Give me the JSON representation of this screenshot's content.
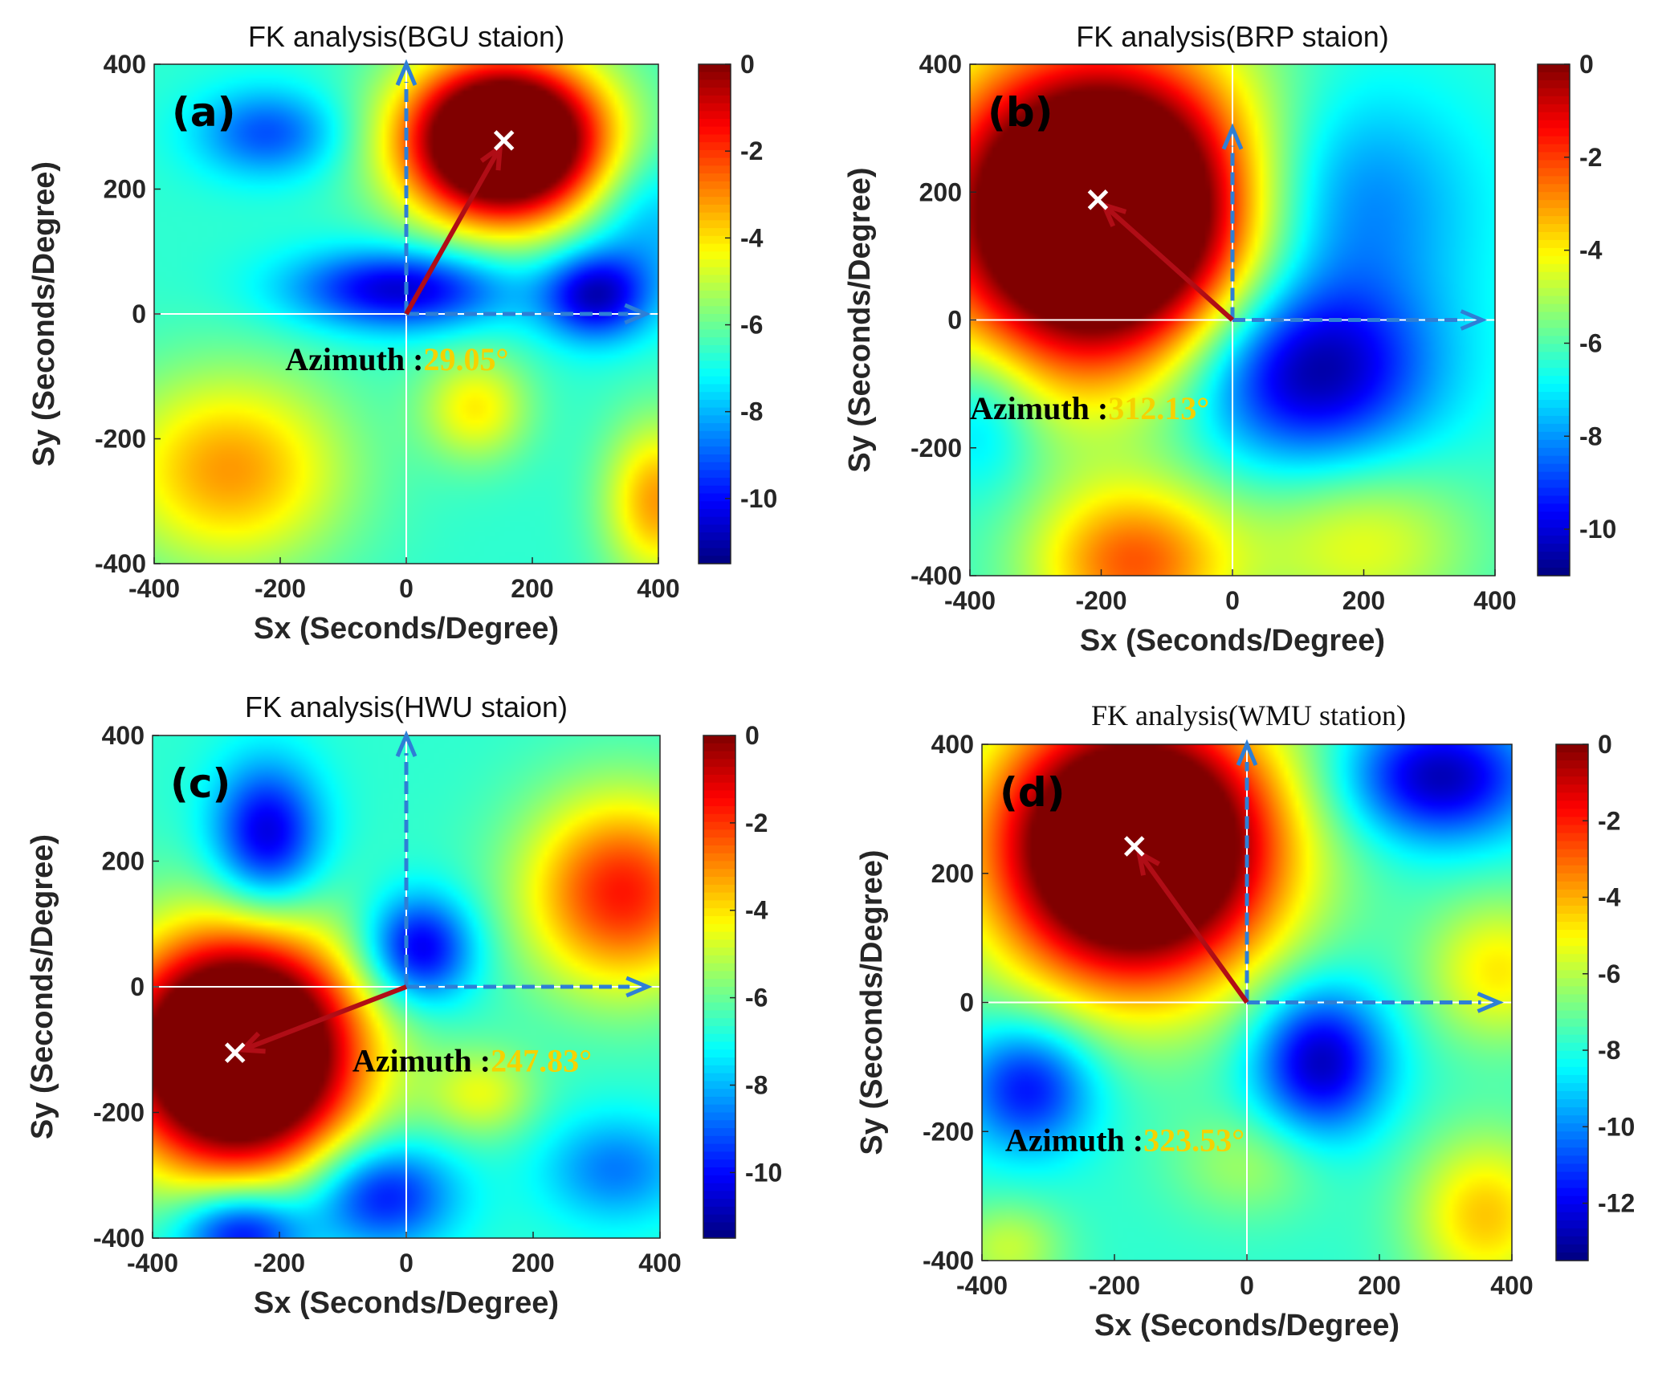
{
  "figure": {
    "colors": {
      "arrow_dashed": "#2e7fd6",
      "arrow_azimuth": "#b00d16",
      "azimuth_label": "#000000",
      "azimuth_value": "#f5d200",
      "marker": "#ffffff",
      "axis_lines": "#ffffff"
    }
  },
  "chart_data": [
    {
      "type": "heatmap",
      "panel_label": "(a)",
      "title": "FK analysis(BGU staion)",
      "xlabel": "Sx (Seconds/Degree)",
      "ylabel": "Sy (Seconds/Degree)",
      "xlim": [
        -400,
        400
      ],
      "ylim": [
        -400,
        400
      ],
      "xticks": [
        -400,
        -200,
        0,
        200,
        400
      ],
      "yticks": [
        -400,
        -200,
        0,
        200,
        400
      ],
      "colorbar": {
        "min": -11.5,
        "max": 0,
        "ticks": [
          0,
          -2,
          -4,
          -6,
          -8,
          -10
        ]
      },
      "peak": {
        "x": 155,
        "y": 278
      },
      "azimuth_label": "Azimuth :",
      "azimuth_value": "29.05°",
      "blobs": [
        {
          "x": 155,
          "y": 278,
          "sx": 110,
          "sy": 90,
          "a": 11.5
        },
        {
          "x": -10,
          "y": 40,
          "sx": 120,
          "sy": 45,
          "a": -4.0
        },
        {
          "x": 300,
          "y": 30,
          "sx": 60,
          "sy": 50,
          "a": -4.0
        },
        {
          "x": -220,
          "y": 290,
          "sx": 80,
          "sy": 50,
          "a": -2.5
        },
        {
          "x": -280,
          "y": -250,
          "sx": 130,
          "sy": 110,
          "a": 3.5
        },
        {
          "x": 110,
          "y": -150,
          "sx": 60,
          "sy": 60,
          "a": 2.5
        },
        {
          "x": 400,
          "y": -300,
          "sx": 60,
          "sy": 90,
          "a": 3.5
        },
        {
          "x": 380,
          "y": 150,
          "sx": 70,
          "sy": 80,
          "a": -1.5
        }
      ]
    },
    {
      "type": "heatmap",
      "panel_label": "(b)",
      "title": "FK analysis(BRP staion)",
      "xlabel": "Sx (Seconds/Degree)",
      "ylabel": "Sy (Seconds/Degree)",
      "xlim": [
        -400,
        400
      ],
      "ylim": [
        -400,
        400
      ],
      "xticks": [
        -400,
        -200,
        0,
        200,
        400
      ],
      "yticks": [
        -400,
        -200,
        0,
        200,
        400
      ],
      "colorbar": {
        "min": -11,
        "max": 0,
        "ticks": [
          0,
          -2,
          -4,
          -6,
          -8,
          -10
        ]
      },
      "peak": {
        "x": -205,
        "y": 188
      },
      "azimuth_label": "Azimuth :",
      "azimuth_value": "312.13°",
      "blobs": [
        {
          "x": -200,
          "y": 170,
          "sx": 170,
          "sy": 170,
          "a": 12
        },
        {
          "x": 110,
          "y": -80,
          "sx": 130,
          "sy": 100,
          "a": -4.5
        },
        {
          "x": 150,
          "y": 180,
          "sx": 140,
          "sy": 130,
          "a": -2.5
        },
        {
          "x": -150,
          "y": -380,
          "sx": 110,
          "sy": 90,
          "a": 4
        },
        {
          "x": 200,
          "y": -350,
          "sx": 120,
          "sy": 90,
          "a": 2
        },
        {
          "x": -380,
          "y": -150,
          "sx": 60,
          "sy": 80,
          "a": -1.5
        }
      ]
    },
    {
      "type": "heatmap",
      "panel_label": "(c)",
      "title": "FK analysis(HWU staion)",
      "xlabel": "Sx (Seconds/Degree)",
      "ylabel": "Sy (Seconds/Degree)",
      "xlim": [
        -400,
        400
      ],
      "ylim": [
        -400,
        400
      ],
      "xticks": [
        -400,
        -200,
        0,
        200,
        400
      ],
      "yticks": [
        -400,
        -200,
        0,
        200,
        400
      ],
      "colorbar": {
        "min": -11.5,
        "max": 0,
        "ticks": [
          0,
          -2,
          -4,
          -6,
          -8,
          -10
        ]
      },
      "peak": {
        "x": -270,
        "y": -105
      },
      "azimuth_label": "Azimuth :",
      "azimuth_value": "247.83°",
      "blobs": [
        {
          "x": -265,
          "y": -105,
          "sx": 130,
          "sy": 130,
          "a": 12
        },
        {
          "x": 340,
          "y": 150,
          "sx": 110,
          "sy": 110,
          "a": 5
        },
        {
          "x": -220,
          "y": 240,
          "sx": 60,
          "sy": 80,
          "a": -4
        },
        {
          "x": 20,
          "y": 60,
          "sx": 60,
          "sy": 60,
          "a": -4
        },
        {
          "x": -40,
          "y": -330,
          "sx": 80,
          "sy": 60,
          "a": -3.5
        },
        {
          "x": -260,
          "y": -390,
          "sx": 70,
          "sy": 50,
          "a": -4
        },
        {
          "x": 330,
          "y": -290,
          "sx": 80,
          "sy": 60,
          "a": -2
        },
        {
          "x": 120,
          "y": -170,
          "sx": 60,
          "sy": 50,
          "a": 2
        }
      ]
    },
    {
      "type": "heatmap",
      "panel_label": "(d)",
      "title": "FK analysis(WMU station)",
      "xlabel": "Sx (Seconds/Degree)",
      "ylabel": "Sy (Seconds/Degree)",
      "xlim": [
        -400,
        400
      ],
      "ylim": [
        -400,
        400
      ],
      "xticks": [
        -400,
        -200,
        0,
        200,
        400
      ],
      "yticks": [
        -400,
        -200,
        0,
        200,
        400
      ],
      "colorbar": {
        "min": -13.5,
        "max": 0,
        "ticks": [
          0,
          -2,
          -4,
          -6,
          -8,
          -10,
          -12
        ]
      },
      "peak": {
        "x": -170,
        "y": 242
      },
      "azimuth_label": "Azimuth :",
      "azimuth_value": "323.53°",
      "blobs": [
        {
          "x": -170,
          "y": 242,
          "sx": 150,
          "sy": 150,
          "a": 13.5
        },
        {
          "x": 110,
          "y": -90,
          "sx": 70,
          "sy": 80,
          "a": -5
        },
        {
          "x": 290,
          "y": 350,
          "sx": 100,
          "sy": 70,
          "a": -5
        },
        {
          "x": -330,
          "y": -130,
          "sx": 70,
          "sy": 70,
          "a": -4
        },
        {
          "x": 380,
          "y": 50,
          "sx": 80,
          "sy": 80,
          "a": 3
        },
        {
          "x": 360,
          "y": -330,
          "sx": 80,
          "sy": 90,
          "a": 3.5
        },
        {
          "x": 0,
          "y": -250,
          "sx": 80,
          "sy": 60,
          "a": 1.5
        },
        {
          "x": -360,
          "y": -380,
          "sx": 60,
          "sy": 50,
          "a": 2
        }
      ]
    }
  ]
}
